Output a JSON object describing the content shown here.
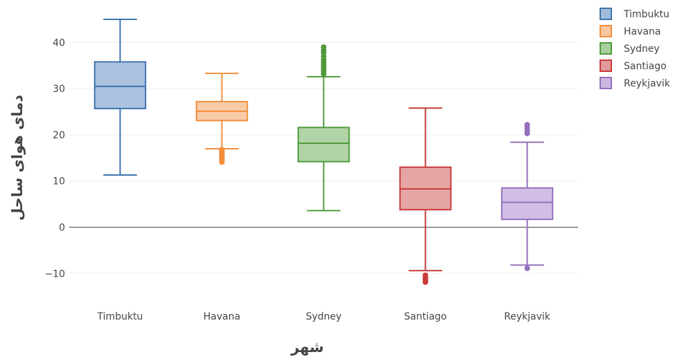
{
  "chart_data": {
    "type": "box",
    "xlabel": "شهر",
    "ylabel": "دمای هوای ساحل",
    "ylim": [
      -15.5,
      48
    ],
    "yticks": [
      -10,
      0,
      10,
      20,
      30,
      40
    ],
    "ytick_labels": [
      "−10",
      "0",
      "10",
      "20",
      "30",
      "40"
    ],
    "grid": true,
    "zero_line": true,
    "legend_position": "top-right",
    "series": [
      {
        "name": "Timbuktu",
        "color": "#3d74b0",
        "fill": "#a2bcdb",
        "min": 11.3,
        "q1": 25.7,
        "median": 30.5,
        "q3": 35.8,
        "max": 45.0,
        "outliers": []
      },
      {
        "name": "Havana",
        "color": "#f28e3c",
        "fill": "#f8c6a0",
        "min": 17.0,
        "q1": 23.1,
        "median": 25.1,
        "q3": 27.2,
        "max": 33.3,
        "outliers": [
          16.8,
          16.5,
          16.2,
          15.9,
          15.6,
          15.3,
          15.0,
          14.7,
          14.4,
          14.1
        ]
      },
      {
        "name": "Sydney",
        "color": "#4f9a3c",
        "fill": "#a8cf9d",
        "min": 3.6,
        "q1": 14.2,
        "median": 18.2,
        "q3": 21.6,
        "max": 32.6,
        "outliers": [
          33.2,
          33.8,
          34.3,
          34.8,
          35.3,
          35.8,
          36.3,
          37.0,
          37.8,
          38.3,
          39.0
        ]
      },
      {
        "name": "Santiago",
        "color": "#c93a3a",
        "fill": "#e29b9b",
        "min": -9.4,
        "q1": 3.8,
        "median": 8.3,
        "q3": 13.0,
        "max": 25.8,
        "outliers": [
          -10.4,
          -10.9,
          -11.4,
          -11.9
        ]
      },
      {
        "name": "Reykjavik",
        "color": "#9470bd",
        "fill": "#ccb7e2",
        "min": -8.2,
        "q1": 1.7,
        "median": 5.4,
        "q3": 8.5,
        "max": 18.4,
        "outliers": [
          -8.9,
          20.3,
          20.8,
          21.3,
          21.8,
          22.2
        ]
      }
    ]
  }
}
